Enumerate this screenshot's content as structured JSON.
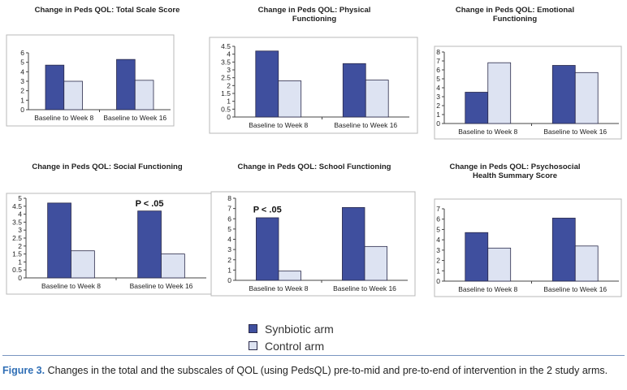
{
  "colors": {
    "synbiotic": "#3f4f9e",
    "control": "#dde3f2",
    "outline": "#2a2a4a"
  },
  "legend": {
    "synbiotic_label": "Synbiotic arm",
    "control_label": "Control arm"
  },
  "caption": {
    "label": "Figure 3.",
    "text": "Changes in the total and the subscales of QOL (using PedsQL) pre-to-mid and pre-to-end of intervention in the 2 study arms."
  },
  "chart_data": [
    {
      "type": "bar",
      "title": [
        "Change in Peds QOL: Total Scale Score"
      ],
      "categories": [
        "Baseline to Week 8",
        "Baseline to Week 16"
      ],
      "series": [
        {
          "name": "Synbiotic arm",
          "values": [
            4.7,
            5.3
          ]
        },
        {
          "name": "Control arm",
          "values": [
            3.0,
            3.1
          ]
        }
      ],
      "ylim": [
        0,
        6
      ],
      "yticks": [
        "0",
        "1",
        "2",
        "3",
        "4",
        "5",
        "6"
      ],
      "annotations": []
    },
    {
      "type": "bar",
      "title": [
        "Change in Peds QOL: Physical",
        "Functioning"
      ],
      "categories": [
        "Baseline to Week 8",
        "Baseline to Week 16"
      ],
      "series": [
        {
          "name": "Synbiotic arm",
          "values": [
            4.2,
            3.4
          ]
        },
        {
          "name": "Control arm",
          "values": [
            2.3,
            2.35
          ]
        }
      ],
      "ylim": [
        0,
        4.5
      ],
      "yticks": [
        "0",
        "0.5",
        "1",
        "1.5",
        "2",
        "2.5",
        "3",
        "3.5",
        "4",
        "4.5"
      ],
      "annotations": []
    },
    {
      "type": "bar",
      "title": [
        "Change in Peds QOL: Emotional",
        "Functioning"
      ],
      "categories": [
        "Baseline to Week 8",
        "Baseline to Week 16"
      ],
      "series": [
        {
          "name": "Synbiotic arm",
          "values": [
            3.5,
            6.5
          ]
        },
        {
          "name": "Control arm",
          "values": [
            6.8,
            5.7
          ]
        }
      ],
      "ylim": [
        0,
        8
      ],
      "yticks": [
        "0",
        "1",
        "2",
        "3",
        "4",
        "5",
        "6",
        "7",
        "8"
      ],
      "annotations": []
    },
    {
      "type": "bar",
      "title": [
        "Change in Peds QOL: Social Functioning"
      ],
      "categories": [
        "Baseline to Week 8",
        "Baseline to Week 16"
      ],
      "series": [
        {
          "name": "Synbiotic arm",
          "values": [
            4.7,
            4.2
          ]
        },
        {
          "name": "Control arm",
          "values": [
            1.7,
            1.5
          ]
        }
      ],
      "ylim": [
        0,
        5
      ],
      "yticks": [
        "0",
        "0.5",
        "1",
        "1.5",
        "2",
        "2.5",
        "3",
        "3.5",
        "4",
        "4.5",
        "5"
      ],
      "annotations": [
        {
          "text": "P < .05",
          "category": 1,
          "y": 4.5
        }
      ]
    },
    {
      "type": "bar",
      "title": [
        "Change in Peds QOL: School Functioning"
      ],
      "categories": [
        "Baseline to Week 8",
        "Baseline to Week 16"
      ],
      "series": [
        {
          "name": "Synbiotic arm",
          "values": [
            6.1,
            7.1
          ]
        },
        {
          "name": "Control arm",
          "values": [
            0.9,
            3.3
          ]
        }
      ],
      "ylim": [
        0,
        8
      ],
      "yticks": [
        "0",
        "1",
        "2",
        "3",
        "4",
        "5",
        "6",
        "7",
        "8"
      ],
      "annotations": [
        {
          "text": "P < .05",
          "category": 0,
          "y": 6.6
        }
      ]
    },
    {
      "type": "bar",
      "title": [
        "Change in Peds QOL: Psychosocial",
        "Health Summary Score"
      ],
      "categories": [
        "Baseline to Week 8",
        "Baseline to Week 16"
      ],
      "series": [
        {
          "name": "Synbiotic arm",
          "values": [
            4.7,
            6.1
          ]
        },
        {
          "name": "Control arm",
          "values": [
            3.2,
            3.4
          ]
        }
      ],
      "ylim": [
        0,
        7
      ],
      "yticks": [
        "0",
        "1",
        "2",
        "3",
        "4",
        "5",
        "6",
        "7"
      ],
      "annotations": []
    }
  ]
}
